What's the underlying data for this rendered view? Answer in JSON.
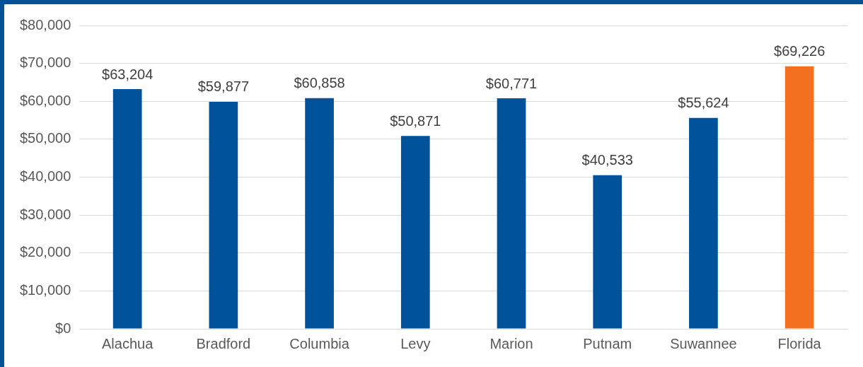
{
  "chart_data": {
    "type": "bar",
    "categories": [
      "Alachua",
      "Bradford",
      "Columbia",
      "Levy",
      "Marion",
      "Putnam",
      "Suwannee",
      "Florida"
    ],
    "values": [
      63204,
      59877,
      60858,
      50871,
      60771,
      40533,
      55624,
      69226
    ],
    "colors": [
      "#00529b",
      "#00529b",
      "#00529b",
      "#00529b",
      "#00529b",
      "#00529b",
      "#00529b",
      "#f37021"
    ],
    "value_labels": [
      "$63,204",
      "$59,877",
      "$60,858",
      "$50,871",
      "$60,771",
      "$40,533",
      "$55,624",
      "$69,226"
    ],
    "ylim": [
      0,
      80000
    ],
    "yticks": [
      {
        "value": 0,
        "label": "$0"
      },
      {
        "value": 10000,
        "label": "$10,000"
      },
      {
        "value": 20000,
        "label": "$20,000"
      },
      {
        "value": 30000,
        "label": "$30,000"
      },
      {
        "value": 40000,
        "label": "$40,000"
      },
      {
        "value": 50000,
        "label": "$50,000"
      },
      {
        "value": 60000,
        "label": "$60,000"
      },
      {
        "value": 70000,
        "label": "$70,000"
      },
      {
        "value": 80000,
        "label": "$80,000"
      }
    ],
    "grid": "y",
    "legend": false
  }
}
